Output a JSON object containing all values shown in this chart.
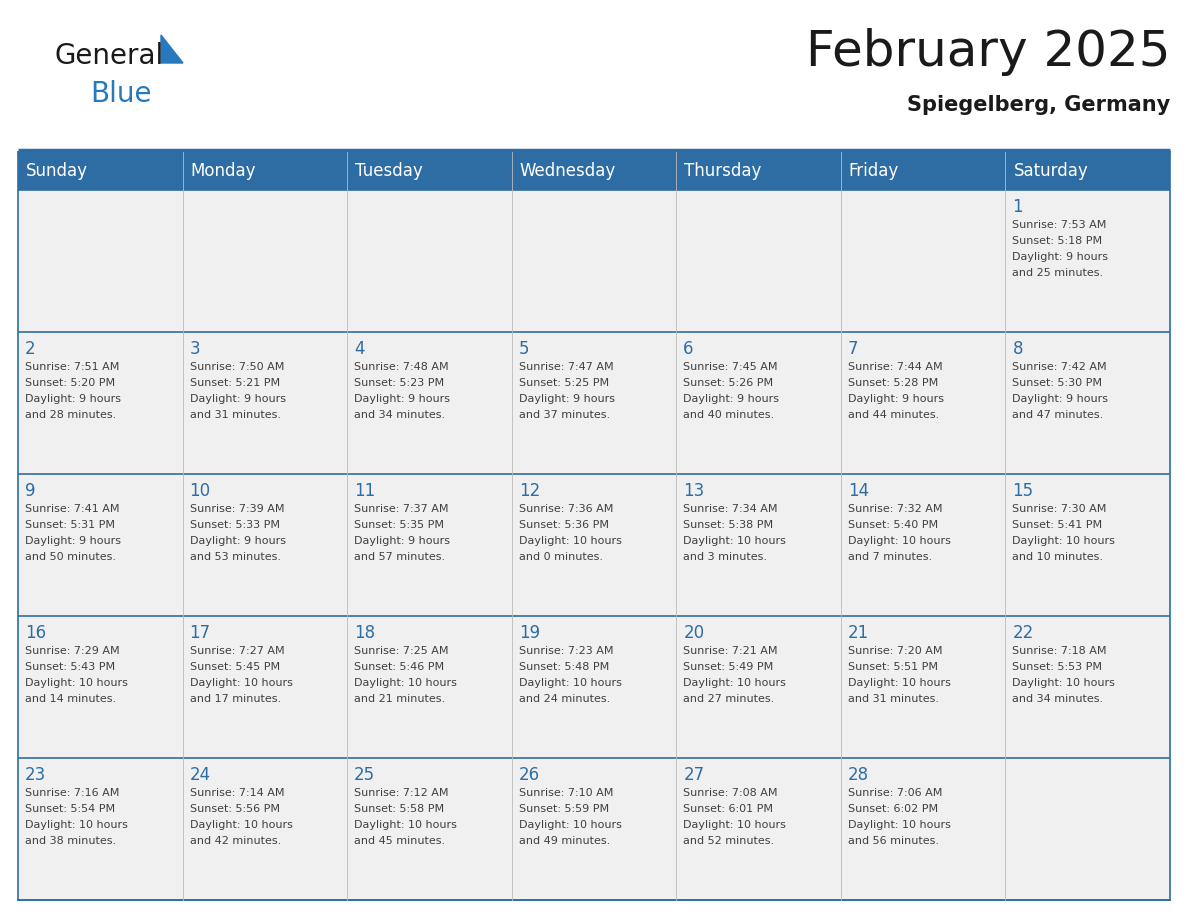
{
  "title": "February 2025",
  "subtitle": "Spiegelberg, Germany",
  "header_bg_color": "#2E6DA4",
  "header_text_color": "#FFFFFF",
  "cell_bg_color": "#F0F0F0",
  "day_num_color": "#2E6DA4",
  "text_color": "#404040",
  "border_color": "#2E6DA4",
  "cell_border_color": "#2E6DA4",
  "days_of_week": [
    "Sunday",
    "Monday",
    "Tuesday",
    "Wednesday",
    "Thursday",
    "Friday",
    "Saturday"
  ],
  "weeks": [
    [
      {
        "day": null,
        "sunrise": null,
        "sunset": null,
        "daylight": null
      },
      {
        "day": null,
        "sunrise": null,
        "sunset": null,
        "daylight": null
      },
      {
        "day": null,
        "sunrise": null,
        "sunset": null,
        "daylight": null
      },
      {
        "day": null,
        "sunrise": null,
        "sunset": null,
        "daylight": null
      },
      {
        "day": null,
        "sunrise": null,
        "sunset": null,
        "daylight": null
      },
      {
        "day": null,
        "sunrise": null,
        "sunset": null,
        "daylight": null
      },
      {
        "day": 1,
        "sunrise": "7:53 AM",
        "sunset": "5:18 PM",
        "daylight": "9 hours\nand 25 minutes."
      }
    ],
    [
      {
        "day": 2,
        "sunrise": "7:51 AM",
        "sunset": "5:20 PM",
        "daylight": "9 hours\nand 28 minutes."
      },
      {
        "day": 3,
        "sunrise": "7:50 AM",
        "sunset": "5:21 PM",
        "daylight": "9 hours\nand 31 minutes."
      },
      {
        "day": 4,
        "sunrise": "7:48 AM",
        "sunset": "5:23 PM",
        "daylight": "9 hours\nand 34 minutes."
      },
      {
        "day": 5,
        "sunrise": "7:47 AM",
        "sunset": "5:25 PM",
        "daylight": "9 hours\nand 37 minutes."
      },
      {
        "day": 6,
        "sunrise": "7:45 AM",
        "sunset": "5:26 PM",
        "daylight": "9 hours\nand 40 minutes."
      },
      {
        "day": 7,
        "sunrise": "7:44 AM",
        "sunset": "5:28 PM",
        "daylight": "9 hours\nand 44 minutes."
      },
      {
        "day": 8,
        "sunrise": "7:42 AM",
        "sunset": "5:30 PM",
        "daylight": "9 hours\nand 47 minutes."
      }
    ],
    [
      {
        "day": 9,
        "sunrise": "7:41 AM",
        "sunset": "5:31 PM",
        "daylight": "9 hours\nand 50 minutes."
      },
      {
        "day": 10,
        "sunrise": "7:39 AM",
        "sunset": "5:33 PM",
        "daylight": "9 hours\nand 53 minutes."
      },
      {
        "day": 11,
        "sunrise": "7:37 AM",
        "sunset": "5:35 PM",
        "daylight": "9 hours\nand 57 minutes."
      },
      {
        "day": 12,
        "sunrise": "7:36 AM",
        "sunset": "5:36 PM",
        "daylight": "10 hours\nand 0 minutes."
      },
      {
        "day": 13,
        "sunrise": "7:34 AM",
        "sunset": "5:38 PM",
        "daylight": "10 hours\nand 3 minutes."
      },
      {
        "day": 14,
        "sunrise": "7:32 AM",
        "sunset": "5:40 PM",
        "daylight": "10 hours\nand 7 minutes."
      },
      {
        "day": 15,
        "sunrise": "7:30 AM",
        "sunset": "5:41 PM",
        "daylight": "10 hours\nand 10 minutes."
      }
    ],
    [
      {
        "day": 16,
        "sunrise": "7:29 AM",
        "sunset": "5:43 PM",
        "daylight": "10 hours\nand 14 minutes."
      },
      {
        "day": 17,
        "sunrise": "7:27 AM",
        "sunset": "5:45 PM",
        "daylight": "10 hours\nand 17 minutes."
      },
      {
        "day": 18,
        "sunrise": "7:25 AM",
        "sunset": "5:46 PM",
        "daylight": "10 hours\nand 21 minutes."
      },
      {
        "day": 19,
        "sunrise": "7:23 AM",
        "sunset": "5:48 PM",
        "daylight": "10 hours\nand 24 minutes."
      },
      {
        "day": 20,
        "sunrise": "7:21 AM",
        "sunset": "5:49 PM",
        "daylight": "10 hours\nand 27 minutes."
      },
      {
        "day": 21,
        "sunrise": "7:20 AM",
        "sunset": "5:51 PM",
        "daylight": "10 hours\nand 31 minutes."
      },
      {
        "day": 22,
        "sunrise": "7:18 AM",
        "sunset": "5:53 PM",
        "daylight": "10 hours\nand 34 minutes."
      }
    ],
    [
      {
        "day": 23,
        "sunrise": "7:16 AM",
        "sunset": "5:54 PM",
        "daylight": "10 hours\nand 38 minutes."
      },
      {
        "day": 24,
        "sunrise": "7:14 AM",
        "sunset": "5:56 PM",
        "daylight": "10 hours\nand 42 minutes."
      },
      {
        "day": 25,
        "sunrise": "7:12 AM",
        "sunset": "5:58 PM",
        "daylight": "10 hours\nand 45 minutes."
      },
      {
        "day": 26,
        "sunrise": "7:10 AM",
        "sunset": "5:59 PM",
        "daylight": "10 hours\nand 49 minutes."
      },
      {
        "day": 27,
        "sunrise": "7:08 AM",
        "sunset": "6:01 PM",
        "daylight": "10 hours\nand 52 minutes."
      },
      {
        "day": 28,
        "sunrise": "7:06 AM",
        "sunset": "6:02 PM",
        "daylight": "10 hours\nand 56 minutes."
      },
      {
        "day": null,
        "sunrise": null,
        "sunset": null,
        "daylight": null
      }
    ]
  ],
  "logo_color_general": "#1a1a1a",
  "logo_color_blue": "#2779BD",
  "title_fontsize": 36,
  "subtitle_fontsize": 15,
  "header_fontsize": 12,
  "day_num_fontsize": 12,
  "cell_text_fontsize": 8.0
}
